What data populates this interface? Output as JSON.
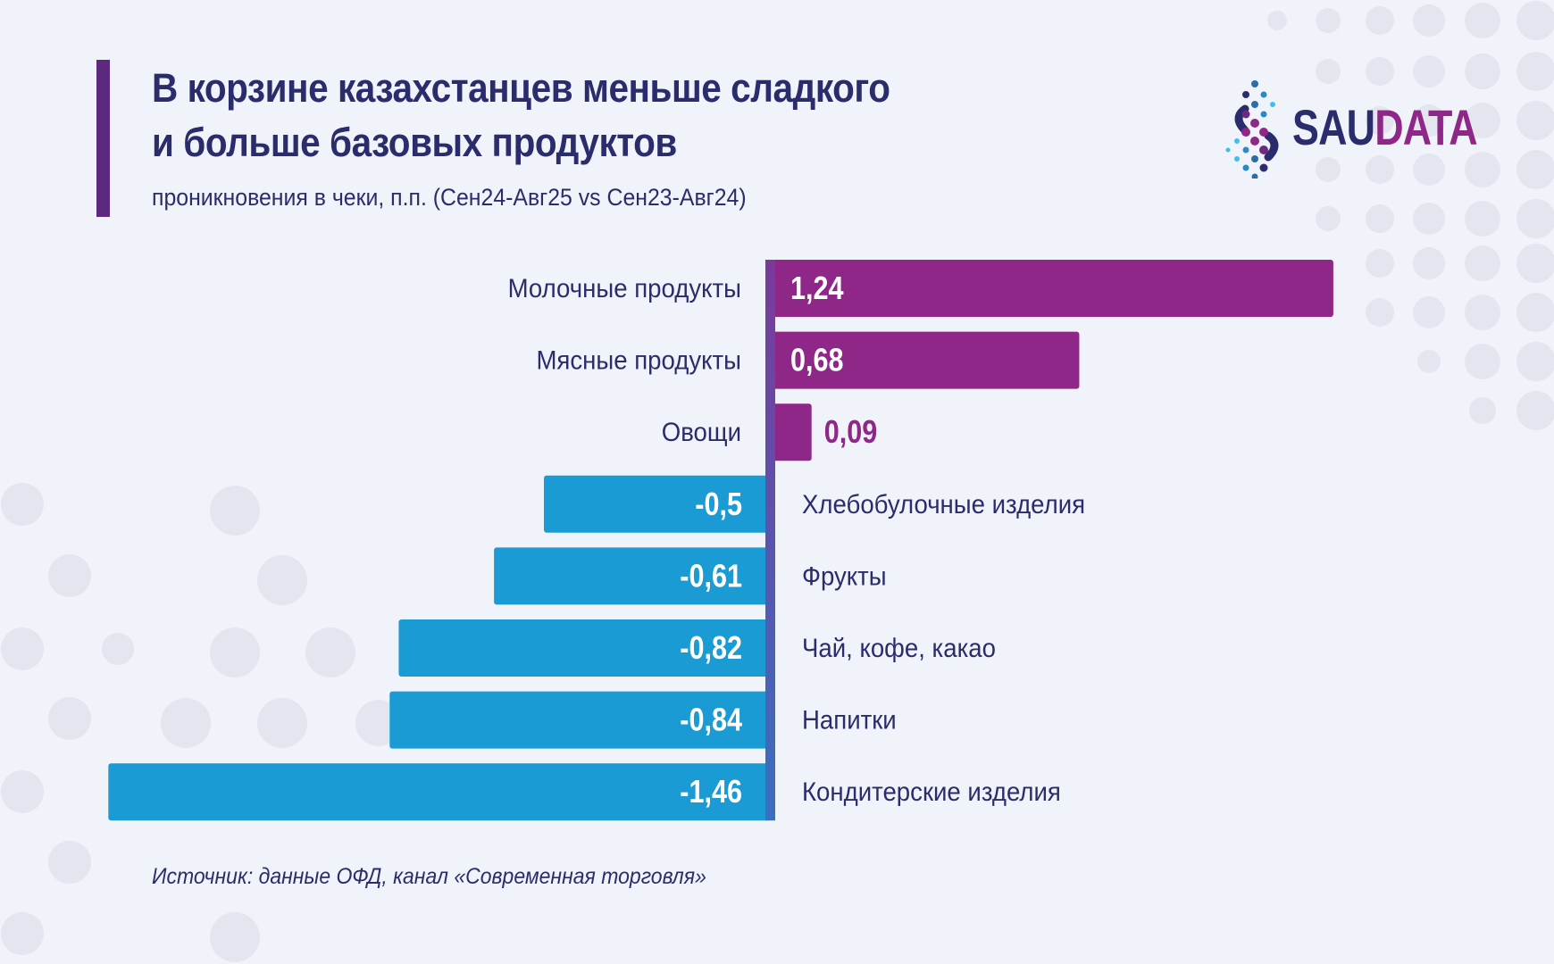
{
  "header": {
    "title_line1": "В корзине казахстанцев меньше сладкого",
    "title_line2": "и больше базовых продуктов",
    "subtitle": "проникновения в чеки, п.п. (Сен24-Авг25 vs Сен23-Авг24)"
  },
  "logo": {
    "part1": "SAU",
    "part2": "DATA"
  },
  "source": "Источник: данные ОФД, канал «Современная торговля»",
  "colors": {
    "positive": "#8e2787",
    "negative": "#1a9bd4",
    "axis": "#5b4aa0",
    "text": "#2b2c6b",
    "background": "#f0f3fa"
  },
  "chart_data": {
    "type": "bar",
    "orientation": "horizontal",
    "categories": [
      "Молочные продукты",
      "Мясные продукты",
      "Овощи",
      "Хлебобулочные изделия",
      "Фрукты",
      "Чай, кофе, какао",
      "Напитки",
      "Кондитерские изделия"
    ],
    "values": [
      1.24,
      0.68,
      0.09,
      -0.5,
      -0.61,
      -0.82,
      -0.84,
      -1.46
    ],
    "labels": [
      "1,24",
      "0,68",
      "0,09",
      "-0,5",
      "-0,61",
      "-0,82",
      "-0,84",
      "-1,46"
    ],
    "xlim": [
      -1.46,
      1.24
    ],
    "grid": false
  }
}
